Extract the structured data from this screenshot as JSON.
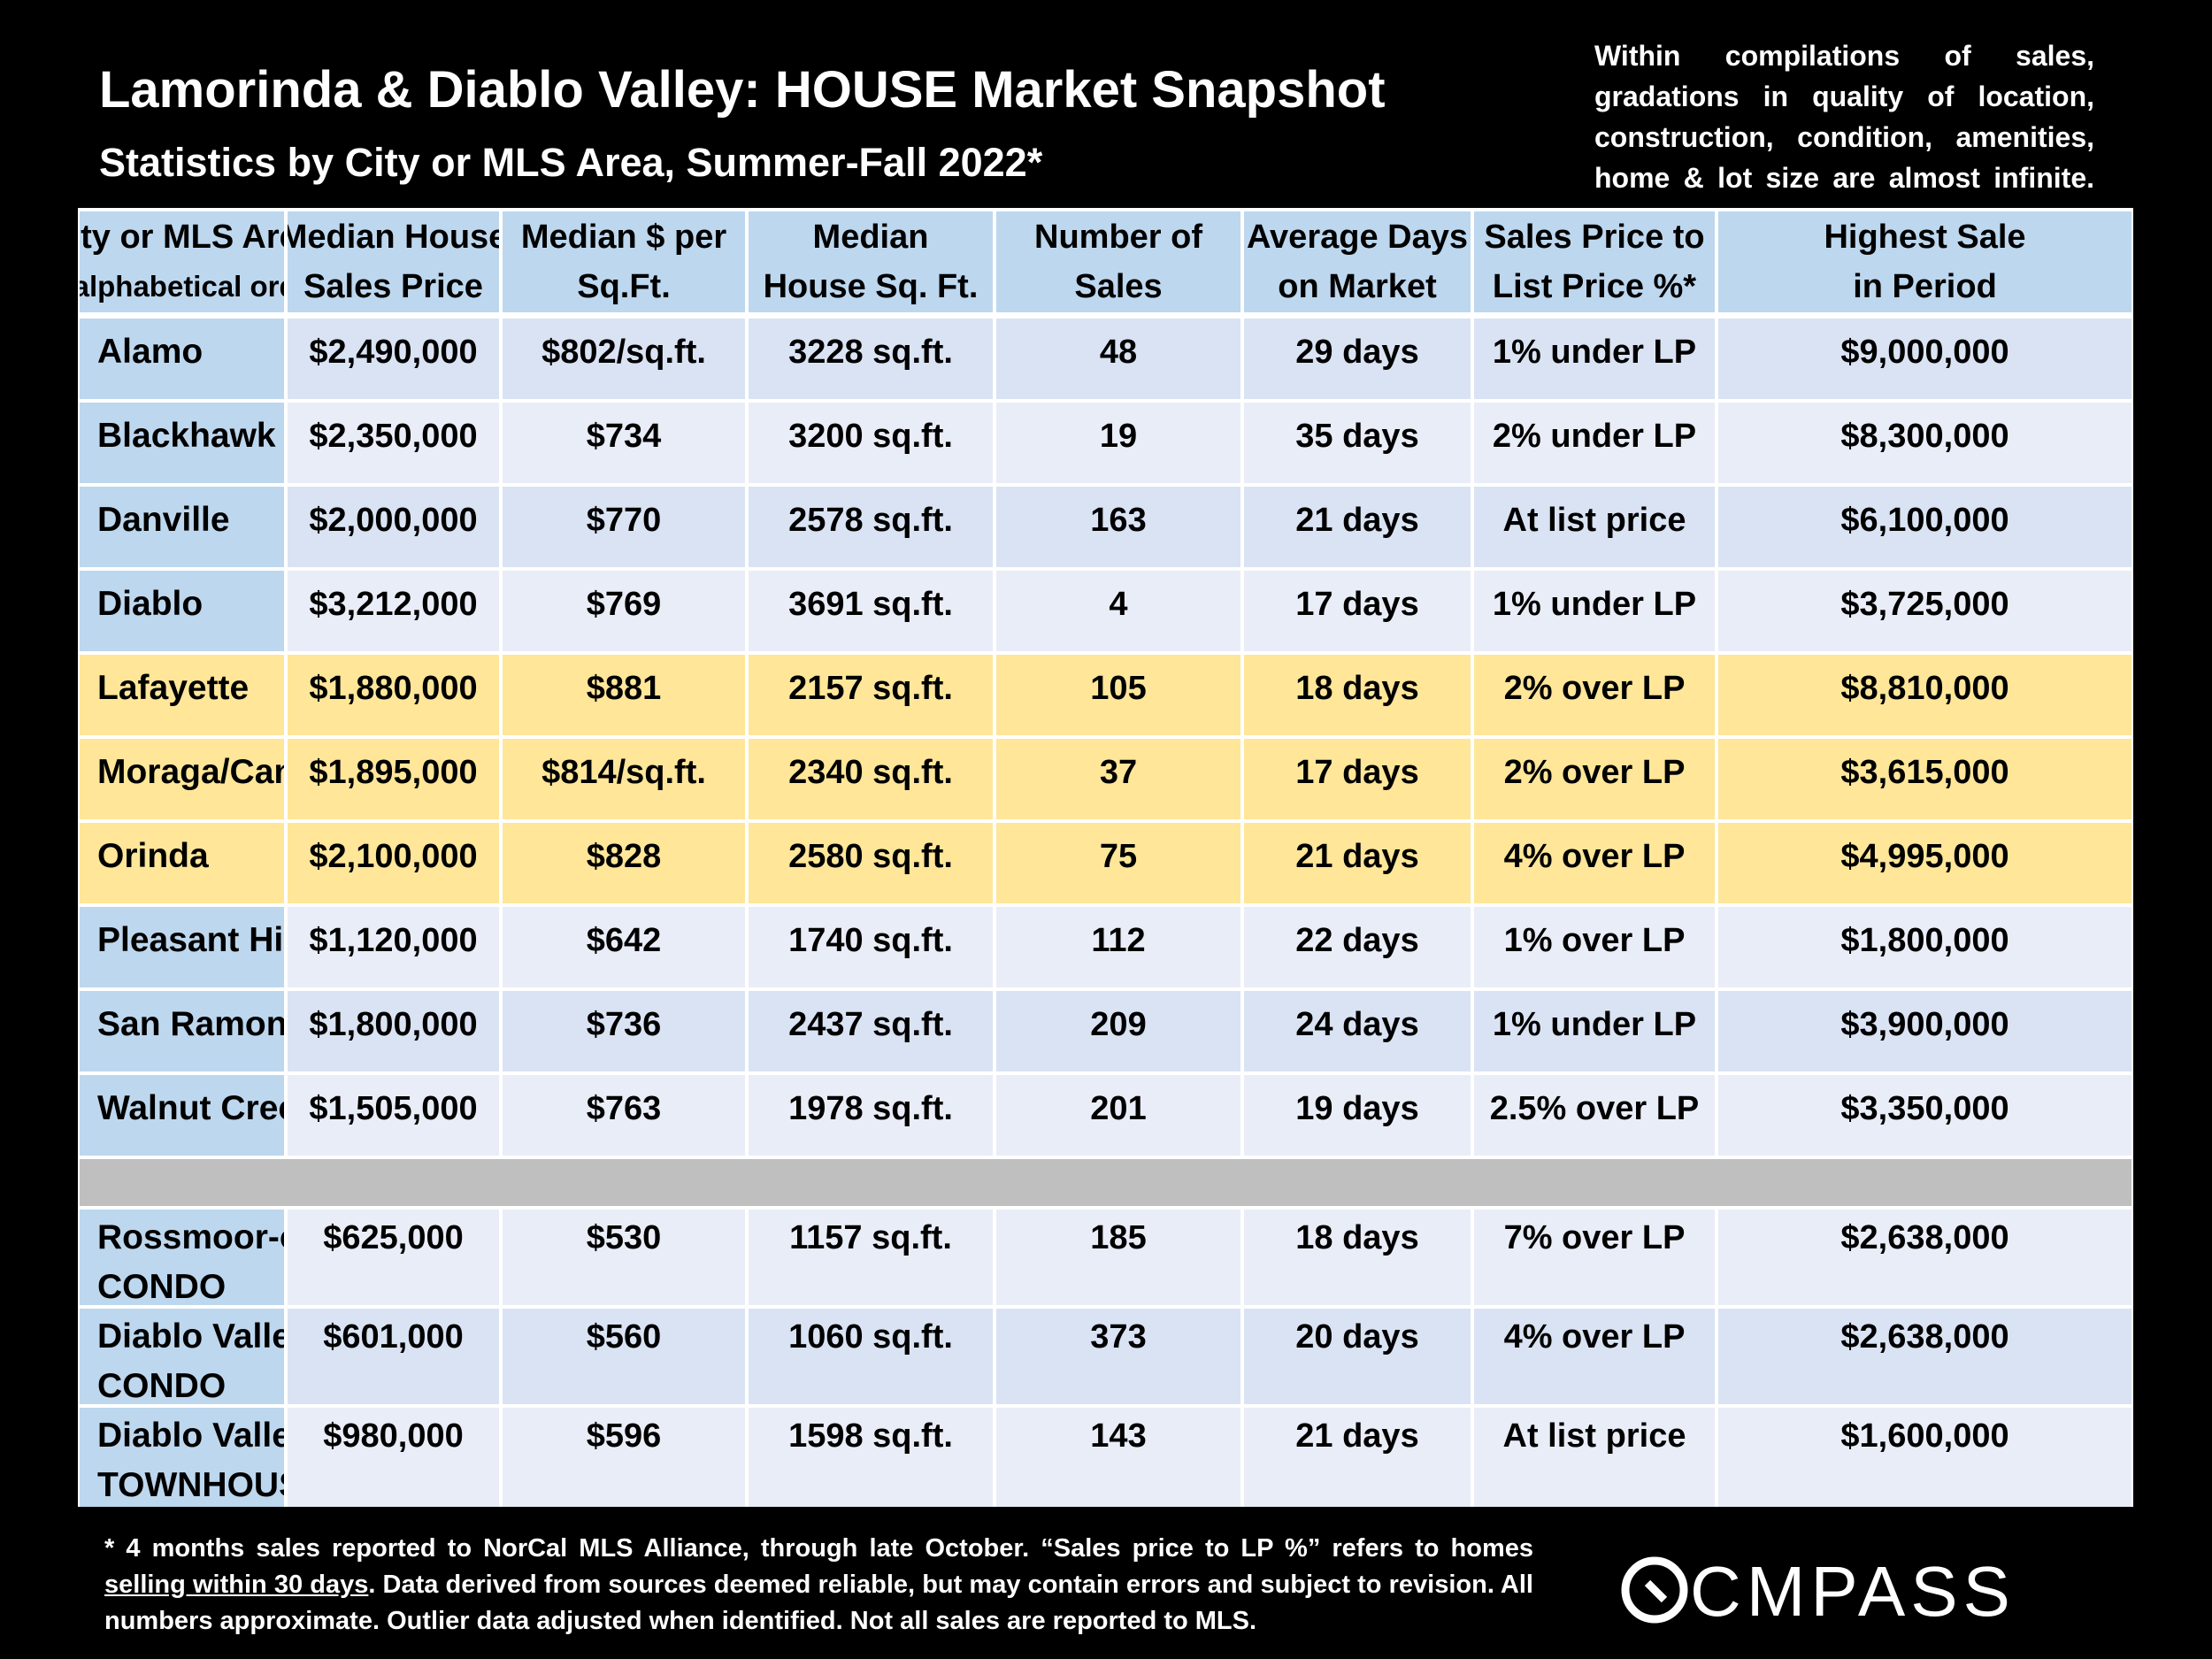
{
  "header": {
    "title": "Lamorinda & Diablo Valley: HOUSE Market Snapshot",
    "subtitle": "Statistics by City or MLS Area, Summer-Fall 2022*",
    "note": "Within compilations of sales, gradations in quality of location, construction, condition, amenities, home & lot size are almost infinite."
  },
  "colors": {
    "header_bg": "#bdd7ee",
    "row_light": "#dae3f3",
    "row_pale": "#e9edf7",
    "highlight": "#ffe699",
    "separator": "#bfbfbf"
  },
  "columns": [
    {
      "line1": "City or MLS Area",
      "line2": "in alphabetical order"
    },
    {
      "line1": "Median House",
      "line2": "Sales Price"
    },
    {
      "line1": "Median $ per",
      "line2": "Sq.Ft."
    },
    {
      "line1": "Median",
      "line2": "House Sq. Ft."
    },
    {
      "line1": "Number of",
      "line2": "Sales"
    },
    {
      "line1": "Average Days",
      "line2": "on Market"
    },
    {
      "line1": "Sales Price to",
      "line2": "List Price %*"
    },
    {
      "line1": "Highest Sale",
      "line2": "in Period"
    }
  ],
  "rows": [
    {
      "city": [
        "Alamo"
      ],
      "price": "$2,490,000",
      "ppsf": "$802/sq.ft.",
      "sqft": "3228 sq.ft.",
      "sales": "48",
      "dom": "29 days",
      "splp": "1% under LP",
      "high": "$9,000,000",
      "style": "light"
    },
    {
      "city": [
        "Blackhawk"
      ],
      "price": "$2,350,000",
      "ppsf": "$734",
      "sqft": "3200 sq.ft.",
      "sales": "19",
      "dom": "35 days",
      "splp": "2% under LP",
      "high": "$8,300,000",
      "style": "pale"
    },
    {
      "city": [
        "Danville"
      ],
      "price": "$2,000,000",
      "ppsf": "$770",
      "sqft": "2578 sq.ft.",
      "sales": "163",
      "dom": "21 days",
      "splp": "At list price",
      "high": "$6,100,000",
      "style": "light"
    },
    {
      "city": [
        "Diablo"
      ],
      "price": "$3,212,000",
      "ppsf": "$769",
      "sqft": "3691 sq.ft.",
      "sales": "4",
      "dom": "17 days",
      "splp": "1% under LP",
      "high": "$3,725,000",
      "style": "pale"
    },
    {
      "city": [
        "Lafayette"
      ],
      "price": "$1,880,000",
      "ppsf": "$881",
      "sqft": "2157 sq.ft.",
      "sales": "105",
      "dom": "18 days",
      "splp": "2% over LP",
      "high": "$8,810,000",
      "style": "highlight"
    },
    {
      "city": [
        "Moraga/Canyon"
      ],
      "price": "$1,895,000",
      "ppsf": "$814/sq.ft.",
      "sqft": "2340 sq.ft.",
      "sales": "37",
      "dom": "17 days",
      "splp": "2% over LP",
      "high": "$3,615,000",
      "style": "highlight"
    },
    {
      "city": [
        "Orinda"
      ],
      "price": "$2,100,000",
      "ppsf": "$828",
      "sqft": "2580 sq.ft.",
      "sales": "75",
      "dom": "21 days",
      "splp": "4% over LP",
      "high": "$4,995,000",
      "style": "highlight"
    },
    {
      "city": [
        "Pleasant Hill"
      ],
      "price": "$1,120,000",
      "ppsf": "$642",
      "sqft": "1740 sq.ft.",
      "sales": "112",
      "dom": "22 days",
      "splp": "1% over LP",
      "high": "$1,800,000",
      "style": "pale"
    },
    {
      "city": [
        "San Ramon"
      ],
      "price": "$1,800,000",
      "ppsf": "$736",
      "sqft": "2437 sq.ft.",
      "sales": "209",
      "dom": "24 days",
      "splp": "1% under LP",
      "high": "$3,900,000",
      "style": "light"
    },
    {
      "city": [
        "Walnut Creek"
      ],
      "price": "$1,505,000",
      "ppsf": "$763",
      "sqft": "1978 sq.ft.",
      "sales": "201",
      "dom": "19 days",
      "splp": "2.5% over LP",
      "high": "$3,350,000",
      "style": "pale"
    },
    {
      "separator": true
    },
    {
      "city": [
        "Rossmoor-only",
        "CONDO"
      ],
      "price": "$625,000",
      "ppsf": "$530",
      "sqft": "1157 sq.ft.",
      "sales": "185",
      "dom": "18 days",
      "splp": "7% over LP",
      "high": "$2,638,000",
      "style": "pale"
    },
    {
      "city": [
        "Diablo Valley",
        "CONDO"
      ],
      "price": "$601,000",
      "ppsf": "$560",
      "sqft": "1060 sq.ft.",
      "sales": "373",
      "dom": "20 days",
      "splp": "4% over LP",
      "high": "$2,638,000",
      "style": "light"
    },
    {
      "city": [
        "Diablo Valley",
        "TOWNHOUSE"
      ],
      "price": "$980,000",
      "ppsf": "$596",
      "sqft": "1598 sq.ft.",
      "sales": "143",
      "dom": "21 days",
      "splp": "At list price",
      "high": "$1,600,000",
      "style": "pale"
    }
  ],
  "footer": {
    "part1": "* 4 months sales reported to NorCal MLS Alliance, through late October. “Sales price to LP %” refers to homes ",
    "underlined": "selling within 30 days",
    "part2": ". Data derived from sources deemed reliable, but may contain errors and subject to revision. All numbers approximate. Outlier data adjusted when identified. Not all sales are reported to MLS."
  },
  "logo": {
    "text": "COMPASS"
  }
}
